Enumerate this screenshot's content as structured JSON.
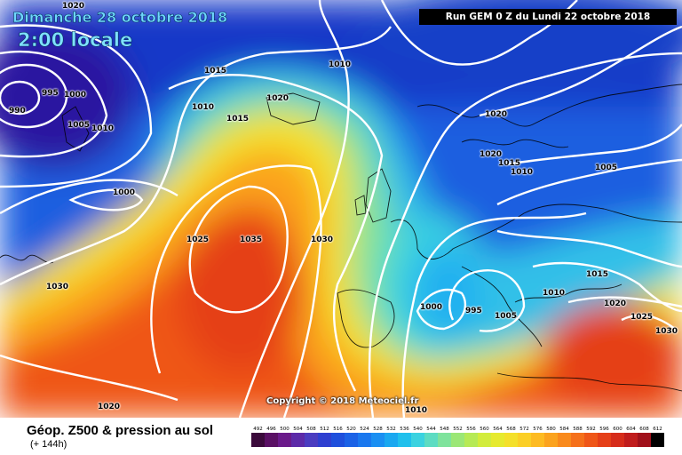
{
  "header": {
    "date": "Dimanche 28 octobre 2018",
    "time": "2:00 locale",
    "run": "Run GEM 0 Z du Lundi 22 octobre 2018"
  },
  "copyright": "Copyright © 2018 Meteociel.fr",
  "footer": {
    "title": "Géop. Z500 & pression au sol",
    "subtitle": "(+ 144h)"
  },
  "isobar_labels": [
    "1020",
    "995",
    "1000",
    "990",
    "1005",
    "1010",
    "1015",
    "1010",
    "1010",
    "1020",
    "1015",
    "1000",
    "1025",
    "1035",
    "1030",
    "1030",
    "1020",
    "1020",
    "1015",
    "1010",
    "1005",
    "1000",
    "995",
    "1005",
    "1010",
    "1015",
    "1020",
    "1025",
    "1030",
    "1020",
    "1010"
  ],
  "scale": {
    "values": [
      "492",
      "496",
      "500",
      "504",
      "508",
      "512",
      "516",
      "520",
      "524",
      "528",
      "532",
      "536",
      "540",
      "544",
      "548",
      "552",
      "556",
      "560",
      "564",
      "568",
      "572",
      "576",
      "580",
      "584",
      "588",
      "592",
      "596",
      "600",
      "604",
      "608",
      "612"
    ],
    "colors": [
      "#3b0a3b",
      "#5a1064",
      "#6a1a8a",
      "#5c2aa8",
      "#4a3cc0",
      "#2e3fd0",
      "#1e4fdc",
      "#1b62e6",
      "#1a78ee",
      "#1a8ff2",
      "#1aa8f0",
      "#20c0ec",
      "#3bd2e0",
      "#5ddcc2",
      "#7fe39c",
      "#9be776",
      "#b6ea55",
      "#d2ec3c",
      "#e6ea2e",
      "#f4e02a",
      "#fbcf26",
      "#fdbb22",
      "#fba31e",
      "#f98a1c",
      "#f5701a",
      "#ef5618",
      "#e53f18",
      "#d62c1a",
      "#c01c1c",
      "#a0101a",
      "#000000"
    ]
  }
}
